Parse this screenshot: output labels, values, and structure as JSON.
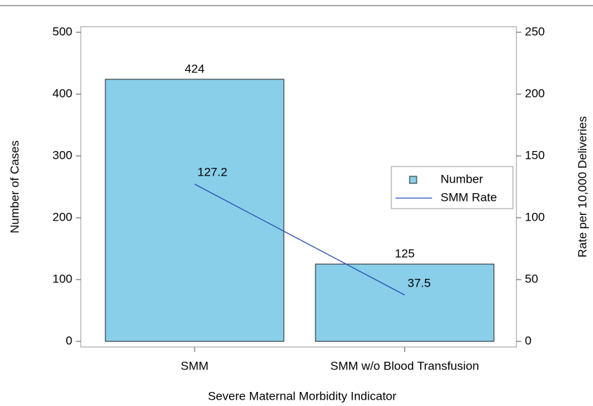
{
  "chart_data": {
    "type": "bar-line",
    "x_label": "Severe Maternal Morbidity Indicator",
    "y_label": "Number of Cases",
    "y2_label": "Rate per 10,000 Deliveries",
    "categories": [
      "SMM",
      "SMM w/o Blood Transfusion"
    ],
    "series": [
      {
        "name": "Number",
        "type": "bar",
        "color": "#89cfea",
        "values": [
          424,
          125
        ]
      },
      {
        "name": "SMM Rate",
        "type": "line",
        "color": "#2b4fb3",
        "axis": "y2",
        "values": [
          127.2,
          37.5
        ]
      }
    ],
    "ylim": [
      0,
      500
    ],
    "yticks": [
      0,
      100,
      200,
      300,
      400,
      500
    ],
    "y2lim": [
      0,
      250
    ],
    "y2ticks": [
      0,
      50,
      100,
      150,
      200,
      250
    ],
    "legend": "right"
  }
}
